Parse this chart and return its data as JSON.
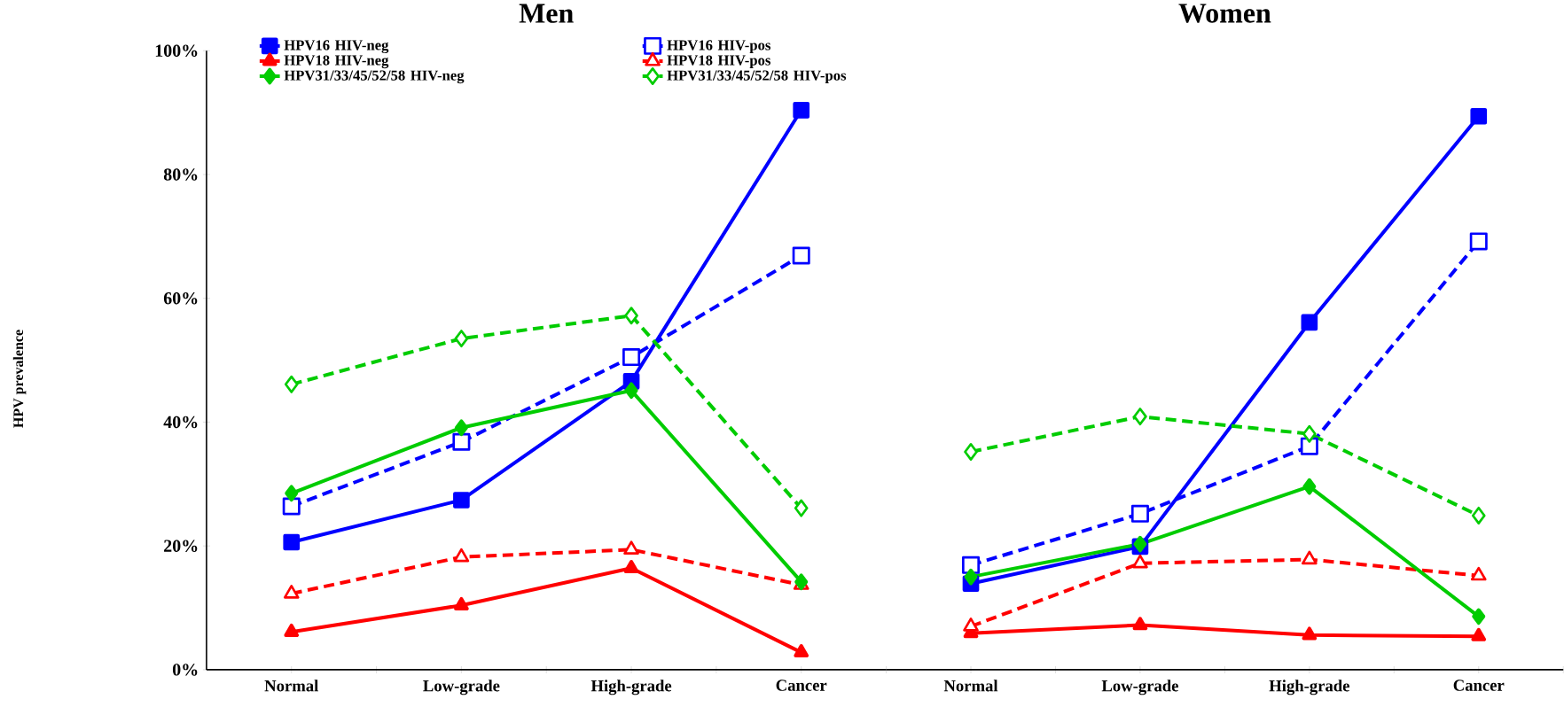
{
  "chart_data": [
    {
      "type": "line",
      "title": "Men",
      "ylabel": "HPV prevalence",
      "categories": [
        "Normal",
        "Low-grade",
        "High-grade",
        "Cancer"
      ],
      "ylim": [
        0,
        100
      ],
      "yticks": [
        {
          "value": 0,
          "label": "0%"
        },
        {
          "value": 20,
          "label": "20%"
        },
        {
          "value": 40,
          "label": "40%"
        },
        {
          "value": 60,
          "label": "60%"
        },
        {
          "value": 80,
          "label": "80%"
        },
        {
          "value": 100,
          "label": "100%"
        }
      ],
      "legend": "top left",
      "grid": false,
      "series": [
        {
          "name": "HPV16  HIV-neg",
          "color": "#0000ff",
          "marker": "square",
          "line_style": "solid",
          "values": [
            20.6,
            27.4,
            46.6,
            90.4
          ]
        },
        {
          "name": "HPV16  HIV-pos",
          "color": "#0000ff",
          "marker": "square",
          "line_style": "dashed",
          "values": [
            26.4,
            36.8,
            50.5,
            66.9
          ]
        },
        {
          "name": "HPV18  HIV-neg",
          "color": "#ff0000",
          "marker": "triangle",
          "line_style": "solid",
          "values": [
            6.1,
            10.4,
            16.4,
            2.8
          ]
        },
        {
          "name": "HPV18  HIV-pos",
          "color": "#ff0000",
          "marker": "triangle",
          "line_style": "dashed",
          "values": [
            12.3,
            18.2,
            19.4,
            13.7
          ]
        },
        {
          "name": "HPV31/33/45/52/58  HIV-neg",
          "color": "#00cc00",
          "marker": "diamond",
          "line_style": "solid",
          "values": [
            28.5,
            39.1,
            45.1,
            14.2
          ]
        },
        {
          "name": "HPV31/33/45/52/58  HIV-pos",
          "color": "#00cc00",
          "marker": "diamond",
          "line_style": "dashed",
          "values": [
            46.1,
            53.5,
            57.2,
            26.1
          ]
        }
      ]
    },
    {
      "type": "line",
      "title": "Women",
      "categories": [
        "Normal",
        "Low-grade",
        "High-grade",
        "Cancer"
      ],
      "ylim": [
        0,
        100
      ],
      "tick_labels": "x",
      "grid": false,
      "series": [
        {
          "color": "#0000ff",
          "marker": "square",
          "line_style": "solid",
          "values": [
            13.9,
            19.9,
            56.1,
            89.4
          ]
        },
        {
          "color": "#0000ff",
          "marker": "square",
          "line_style": "dashed",
          "values": [
            16.9,
            25.2,
            36.1,
            69.2
          ]
        },
        {
          "color": "#ff0000",
          "marker": "triangle",
          "line_style": "solid",
          "values": [
            5.9,
            7.2,
            5.6,
            5.4
          ]
        },
        {
          "color": "#ff0000",
          "marker": "triangle",
          "line_style": "dashed",
          "values": [
            7.0,
            17.2,
            17.8,
            15.2
          ]
        },
        {
          "color": "#00cc00",
          "marker": "diamond",
          "line_style": "solid",
          "values": [
            15.0,
            20.3,
            29.6,
            8.6
          ]
        },
        {
          "color": "#00cc00",
          "marker": "diamond",
          "line_style": "dashed",
          "values": [
            35.2,
            40.9,
            38.1,
            24.9
          ]
        }
      ]
    }
  ]
}
